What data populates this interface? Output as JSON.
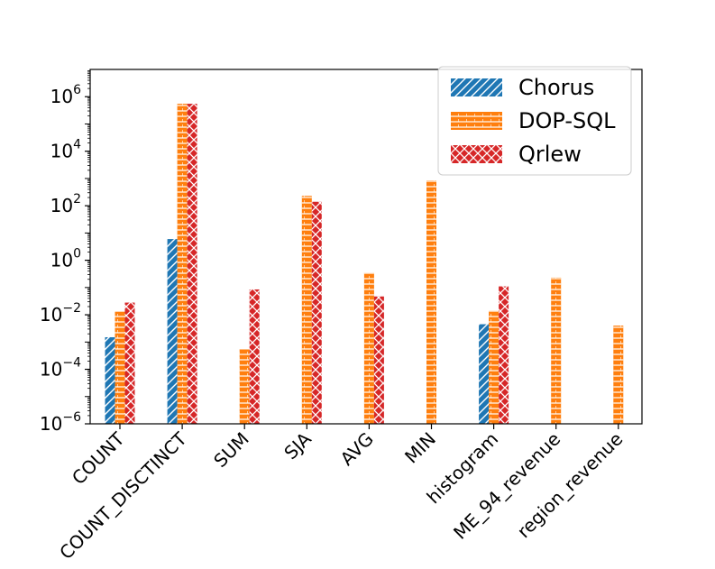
{
  "chart_data": {
    "type": "bar",
    "yscale": "log",
    "ylim": [
      1e-06,
      10000000.0
    ],
    "yticks": [
      {
        "base": "10",
        "exp": "−6",
        "value": 1e-06
      },
      {
        "base": "10",
        "exp": "−4",
        "value": 0.0001
      },
      {
        "base": "10",
        "exp": "−2",
        "value": 0.01
      },
      {
        "base": "10",
        "exp": "0",
        "value": 1
      },
      {
        "base": "10",
        "exp": "2",
        "value": 100
      },
      {
        "base": "10",
        "exp": "4",
        "value": 10000
      },
      {
        "base": "10",
        "exp": "6",
        "value": 1000000
      }
    ],
    "categories": [
      "COUNT",
      "COUNT_DISCTINCT",
      "SUM",
      "SJA",
      "AVG",
      "MIN",
      "histogram",
      "ME_94_revenue",
      "region_revenue"
    ],
    "series": [
      {
        "name": "Chorus",
        "color": "#1f77b4",
        "hatch": "diagonal",
        "values": [
          0.0015,
          6.0,
          null,
          null,
          null,
          null,
          0.0045,
          null,
          null
        ]
      },
      {
        "name": "DOP-SQL",
        "color": "#ff7f0e",
        "hatch": "horizontal",
        "values": [
          0.013,
          550000,
          0.00055,
          230,
          0.35,
          850,
          0.014,
          0.23,
          0.004
        ]
      },
      {
        "name": "Qrlew",
        "color": "#d62728",
        "hatch": "cross",
        "values": [
          0.028,
          550000,
          0.085,
          140,
          0.047,
          null,
          0.11,
          null,
          null
        ]
      }
    ],
    "grid": false,
    "legend_position": "top-right"
  }
}
